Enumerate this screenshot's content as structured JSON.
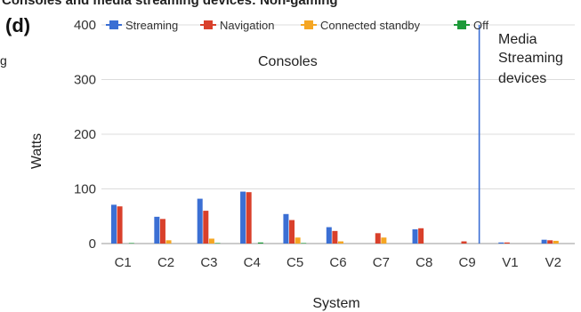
{
  "panel_label": "(d)",
  "clipped_title": "Consoles and media streaming devices: Non-gaming",
  "stray_text": "g",
  "chart_data": {
    "type": "bar",
    "categories": [
      "C1",
      "C2",
      "C3",
      "C4",
      "C5",
      "C6",
      "C7",
      "C8",
      "C9",
      "V1",
      "V2"
    ],
    "series": [
      {
        "name": "Streaming",
        "color": "#3b6fd4",
        "values": [
          71,
          49,
          82,
          95,
          54,
          30,
          0,
          26,
          0,
          2,
          7
        ]
      },
      {
        "name": "Navigation",
        "color": "#d9402b",
        "values": [
          68,
          45,
          60,
          94,
          43,
          23,
          19,
          28,
          4,
          2,
          6
        ]
      },
      {
        "name": "Connected standby",
        "color": "#f5a623",
        "values": [
          0,
          6,
          9,
          0,
          11,
          4,
          11,
          0,
          0,
          0,
          5
        ]
      },
      {
        "name": "Off",
        "color": "#1e9a3a",
        "values": [
          1,
          0,
          1,
          2,
          1,
          0,
          0,
          0,
          0,
          0,
          0
        ]
      }
    ],
    "ylabel": "Watts",
    "xlabel": "System",
    "ylim": [
      0,
      400
    ],
    "yticks": [
      0,
      100,
      200,
      300,
      400
    ],
    "grid": true,
    "legend_position": "top",
    "annotations": {
      "consoles": "Consoles",
      "media_line1": "Media",
      "media_line2": "Streaming",
      "media_line3": "devices"
    },
    "divider_color": "#3b6fd4"
  }
}
